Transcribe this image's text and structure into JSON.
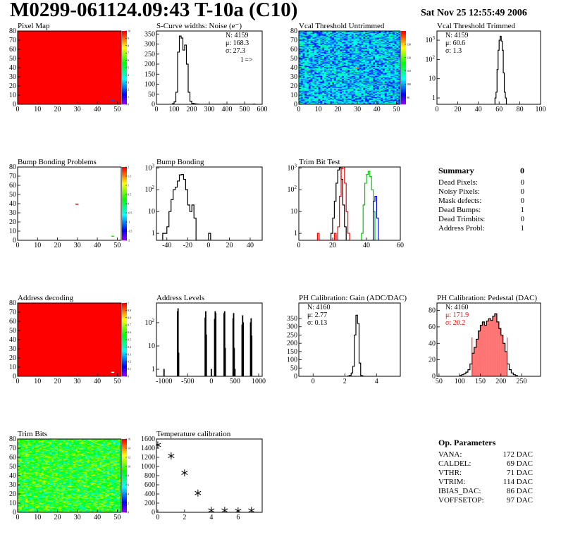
{
  "header": {
    "title": "M0299-061124.09:43 T-10a (C10)",
    "date": "Sat Nov 25 12:55:49 2006"
  },
  "summary": {
    "title": "Summary",
    "value": "0",
    "rows": [
      {
        "label": "Dead Pixels:",
        "value": "0"
      },
      {
        "label": "Noisy Pixels:",
        "value": "0"
      },
      {
        "label": "Mask defects:",
        "value": "0"
      },
      {
        "label": "Dead Bumps:",
        "value": "1"
      },
      {
        "label": "Dead Trimbits:",
        "value": "0"
      },
      {
        "label": "Address Probl:",
        "value": "1"
      }
    ]
  },
  "op_parameters": {
    "title": "Op. Parameters",
    "rows": [
      {
        "label": "VANA:",
        "value": "172 DAC"
      },
      {
        "label": "CALDEL:",
        "value": "69 DAC"
      },
      {
        "label": "VTHR:",
        "value": "71 DAC"
      },
      {
        "label": "VTRIM:",
        "value": "114 DAC"
      },
      {
        "label": "IBIAS_DAC:",
        "value": "86 DAC"
      },
      {
        "label": "VOFFSETOP:",
        "value": "97 DAC"
      }
    ]
  },
  "chart_data": [
    {
      "title": "Pixel Map",
      "type": "heatmap",
      "xlim": [
        0,
        52
      ],
      "ylim": [
        0,
        80
      ],
      "xticks": [
        0,
        10,
        20,
        30,
        40,
        50
      ],
      "yticks": [
        0,
        10,
        20,
        30,
        40,
        50,
        60,
        70,
        80
      ],
      "zlim": [
        0,
        10
      ],
      "zticks": [
        0,
        1,
        2,
        3,
        4,
        5,
        6,
        7,
        8,
        9,
        10
      ],
      "fill": 10,
      "cells": [
        {
          "x": 47,
          "y": 4,
          "z": 2
        }
      ]
    },
    {
      "title": "S-Curve widths: Noise (e⁻)",
      "type": "hist",
      "xlim": [
        0,
        600
      ],
      "ylim": [
        0,
        365
      ],
      "xticks": [
        0,
        100,
        200,
        300,
        400,
        500,
        600
      ],
      "yticks": [
        0,
        50,
        100,
        150,
        200,
        250,
        300,
        350
      ],
      "stats": [
        "N: 4159",
        "μ: 168.3",
        "σ: 27.3"
      ],
      "annotation": "l =>",
      "series": [
        {
          "color": "#000000",
          "bins_lo": 90,
          "bin_width": 10,
          "values": [
            3,
            12,
            60,
            260,
            340,
            330,
            270,
            295,
            200,
            60,
            15,
            5,
            3,
            2,
            1,
            0,
            0,
            0,
            0,
            0,
            0,
            0,
            0,
            0,
            0,
            0,
            0,
            0,
            0,
            1,
            0,
            0,
            0,
            0,
            0,
            0,
            0,
            0,
            0,
            0,
            0,
            0,
            0,
            0,
            0,
            0,
            1
          ]
        }
      ]
    },
    {
      "title": "Vcal Threshold Untrimmed",
      "type": "heatmap",
      "xlim": [
        0,
        52
      ],
      "ylim": [
        0,
        80
      ],
      "xticks": [
        0,
        10,
        20,
        30,
        40,
        50
      ],
      "yticks": [
        0,
        10,
        20,
        30,
        40,
        50,
        60,
        70,
        80
      ],
      "zlim": [
        85,
        140
      ],
      "zticks": [
        90,
        100,
        110,
        120,
        130
      ],
      "fill_range": [
        92,
        110
      ],
      "cells": [
        {
          "x": 29,
          "y": 39,
          "z": 135
        }
      ]
    },
    {
      "title": "Vcal Threshold Trimmed",
      "type": "hist",
      "log": true,
      "xlim": [
        0,
        100
      ],
      "ylim": [
        0.47,
        3000
      ],
      "xticks": [
        0,
        20,
        40,
        60,
        80,
        100
      ],
      "yticks": [
        1,
        10,
        100,
        1000
      ],
      "stats": [
        "N: 4159",
        "μ: 60.6",
        "σ:  1.3"
      ],
      "series": [
        {
          "color": "#000000",
          "bins_lo": 56,
          "bin_width": 1,
          "values": [
            1,
            2,
            30,
            300,
            1000,
            1600,
            900,
            300,
            20,
            2,
            1
          ]
        }
      ]
    },
    {
      "title": "Bump Bonding Problems",
      "type": "heatmap",
      "xlim": [
        0,
        52
      ],
      "ylim": [
        0,
        80
      ],
      "xticks": [
        0,
        10,
        20,
        30,
        40,
        50
      ],
      "yticks": [
        0,
        10,
        20,
        30,
        40,
        50,
        60,
        70,
        80
      ],
      "zlim": [
        -2,
        2
      ],
      "zticks": [
        -2,
        -1.5,
        -1,
        -0.5,
        0,
        0.5,
        1,
        1.5,
        2
      ],
      "fill": null,
      "cells": [
        {
          "x": 29,
          "y": 39,
          "z": 2
        },
        {
          "x": 47,
          "y": 4,
          "z": 0.3
        }
      ]
    },
    {
      "title": "Bump Bonding",
      "type": "hist",
      "log": true,
      "xlim": [
        -50,
        51.5
      ],
      "ylim": [
        0.48,
        1100
      ],
      "xticks": [
        -40,
        -20,
        0,
        20,
        40
      ],
      "yticks": [
        1,
        10,
        100,
        1000
      ],
      "series": [
        {
          "color": "#000000",
          "bins_lo": -44,
          "bin_width": 2,
          "values": [
            1,
            1,
            2,
            10,
            35,
            100,
            130,
            250,
            480,
            500,
            300,
            100,
            20,
            10,
            20,
            5,
            0,
            0,
            0,
            0,
            0,
            0,
            1
          ]
        }
      ]
    },
    {
      "title": "Trim Bit Test",
      "type": "hist",
      "log": true,
      "xlim": [
        0,
        60
      ],
      "ylim": [
        0.48,
        1100
      ],
      "xticks": [
        0,
        20,
        40,
        60
      ],
      "yticks": [
        1,
        10,
        100,
        1000
      ],
      "series": [
        {
          "color": "#000000",
          "bins_lo": 19,
          "bin_width": 1,
          "values": [
            1,
            5,
            30,
            200,
            800,
            1000,
            300,
            20,
            2
          ]
        },
        {
          "color": "#ff0000",
          "bins_lo": 11,
          "bin_width": 1,
          "values": [
            1,
            0,
            0,
            0,
            0,
            0,
            0,
            0,
            0,
            0,
            1,
            0,
            2,
            50,
            900,
            1500,
            200,
            10,
            1
          ]
        },
        {
          "color": "#00cc00",
          "bins_lo": 37,
          "bin_width": 1,
          "values": [
            1,
            20,
            200,
            500,
            700,
            400,
            100,
            10
          ]
        },
        {
          "color": "#0000ff",
          "bins_lo": 43,
          "bin_width": 1,
          "values": [
            0,
            30,
            50,
            5
          ]
        }
      ]
    },
    {
      "title": "Address decoding",
      "type": "heatmap",
      "xlim": [
        0,
        52
      ],
      "ylim": [
        0,
        80
      ],
      "xticks": [
        0,
        10,
        20,
        30,
        40,
        50
      ],
      "yticks": [
        0,
        10,
        20,
        30,
        40,
        50,
        60,
        70,
        80
      ],
      "zlim": [
        0,
        1
      ],
      "zticks": [
        0,
        0.1,
        0.2,
        0.3,
        0.4,
        0.5,
        0.6,
        0.7,
        0.8,
        0.9,
        1
      ],
      "fill": 1,
      "cells": [
        {
          "x": 47,
          "y": 4,
          "z": null
        }
      ]
    },
    {
      "title": "Address Levels",
      "type": "peaks",
      "log": true,
      "xlim": [
        -1160,
        1075
      ],
      "ylim": [
        0.5,
        700
      ],
      "xticks": [
        -1000,
        -500,
        0,
        500,
        1000
      ],
      "yticks": [
        1,
        10,
        100
      ],
      "peak_width": 12,
      "peaks": [
        [
          -715,
          300
        ],
        [
          -703,
          400
        ],
        [
          -691,
          5
        ],
        [
          -130,
          160
        ],
        [
          -118,
          300
        ],
        [
          -106,
          30
        ],
        [
          70,
          140
        ],
        [
          82,
          300
        ],
        [
          94,
          250
        ],
        [
          270,
          250
        ],
        [
          282,
          300
        ],
        [
          294,
          8
        ],
        [
          460,
          150
        ],
        [
          472,
          250
        ],
        [
          484,
          8
        ],
        [
          650,
          80
        ],
        [
          662,
          200
        ],
        [
          674,
          100
        ],
        [
          830,
          100
        ],
        [
          842,
          150
        ],
        [
          854,
          27
        ],
        [
          -1000,
          1
        ],
        [
          0,
          1
        ],
        [
          500,
          1
        ]
      ]
    },
    {
      "title": "PH Calibration: Gain (ADC/DAC)",
      "type": "hist",
      "xlim": [
        -0.9,
        5.5
      ],
      "ylim": [
        0,
        444
      ],
      "xticks": [
        0,
        2,
        4
      ],
      "yticks": [
        0,
        50,
        100,
        150,
        200,
        250,
        300,
        350
      ],
      "stats": [
        "N: 4160",
        "μ: 2.77",
        "σ: 0.13"
      ],
      "series": [
        {
          "color": "#000000",
          "bins_lo": 2.2,
          "bin_width": 0.1,
          "values": [
            2,
            6,
            20,
            60,
            250,
            370,
            320,
            80,
            5,
            1
          ]
        }
      ]
    },
    {
      "title": "PH Calibration: Pedestal (DAC)",
      "type": "hist",
      "xlim": [
        45,
        296
      ],
      "ylim": [
        0,
        89
      ],
      "xticks": [
        50,
        100,
        150,
        200,
        250
      ],
      "yticks": [
        0,
        20,
        40,
        60,
        80
      ],
      "stats": [
        "N: 4160",
        "μ: 171.9",
        "σ: 20.2"
      ],
      "stats_colors": [
        "#000000",
        "#ff0000",
        "#ff0000"
      ],
      "cut_lines": [
        130,
        215
      ],
      "fill_range": [
        130,
        215
      ],
      "fill_color": "#ff0000",
      "series": [
        {
          "color": "#000000",
          "bins_lo": 100,
          "bin_width": 5,
          "values": [
            1,
            2,
            3,
            5,
            8,
            15,
            28,
            35,
            45,
            55,
            62,
            66,
            62,
            67,
            70,
            68,
            73,
            76,
            66,
            58,
            50,
            40,
            30,
            15,
            8,
            4,
            2,
            1
          ]
        }
      ]
    },
    {
      "title": "Trim Bits",
      "type": "heatmap",
      "xlim": [
        0,
        52
      ],
      "ylim": [
        0,
        80
      ],
      "xticks": [
        0,
        10,
        20,
        30,
        40,
        50
      ],
      "yticks": [
        0,
        10,
        20,
        30,
        40,
        50,
        60,
        70,
        80
      ],
      "zlim": [
        0,
        16
      ],
      "zticks": [
        0,
        2,
        4,
        6,
        8,
        10,
        12,
        14,
        16
      ],
      "fill_range": [
        6,
        12
      ],
      "cells": []
    },
    {
      "title": "Temperature calibration",
      "type": "scatter",
      "xlim": [
        -0.1,
        7.8
      ],
      "ylim": [
        0,
        1600
      ],
      "xticks": [
        0,
        2,
        4,
        6
      ],
      "yticks": [
        0,
        200,
        400,
        600,
        800,
        1000,
        1200,
        1400,
        1600
      ],
      "x": [
        0,
        1,
        2,
        3,
        4,
        5,
        6,
        7
      ],
      "y": [
        1470,
        1230,
        860,
        420,
        40,
        40,
        30,
        40
      ]
    }
  ]
}
